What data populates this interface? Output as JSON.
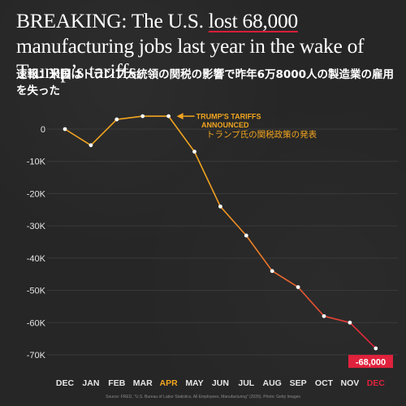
{
  "headline": {
    "part1": "BREAKING: The U.S. ",
    "highlight": "lost 68,000",
    "part2": " manufacturing jobs last year in the wake of Trump’s tariffs."
  },
  "subheadline": "速報：米国はトランプ大統領の関税の影響で昨年6万8000人の製造業の雇用を失った",
  "source": "Source: FRED, \"U.S. Bureau of Labor Statistics, All Employees, Manufacturing\" (2026). Photo: Getty Images",
  "colors": {
    "background": "#262626",
    "highlight": "#d81e3a",
    "line_start": "#f2a51f",
    "line_end": "#e0223c",
    "annotation": "#f2a51f",
    "grid": "#3a3a3a",
    "axis_text": "#e6e6e6"
  },
  "chart_data": {
    "type": "line",
    "x": [
      "DEC",
      "JAN",
      "FEB",
      "MAR",
      "APR",
      "MAY",
      "JUN",
      "JUL",
      "AUG",
      "SEP",
      "OCT",
      "NOV",
      "DEC"
    ],
    "highlighted_x": [
      "APR",
      "DEC"
    ],
    "y": [
      0,
      -5000,
      3000,
      4000,
      4000,
      -7000,
      -24000,
      -33000,
      -44000,
      -49000,
      -58000,
      -60000,
      -68000
    ],
    "ylim": [
      -70000,
      0
    ],
    "yticks": [
      0,
      -10000,
      -20000,
      -30000,
      -40000,
      -50000,
      -60000,
      -70000
    ],
    "ytick_labels": [
      "0",
      "-10K",
      "-20K",
      "-30K",
      "-40K",
      "-50K",
      "-60K",
      "-70K"
    ],
    "grid": true,
    "annotation": {
      "x": "APR",
      "line1": "TRUMP'S TARIFFS",
      "line2": "ANNOUNCED",
      "line3": "トランプ氏の関税政策の発表"
    },
    "end_label": "-68,000"
  }
}
